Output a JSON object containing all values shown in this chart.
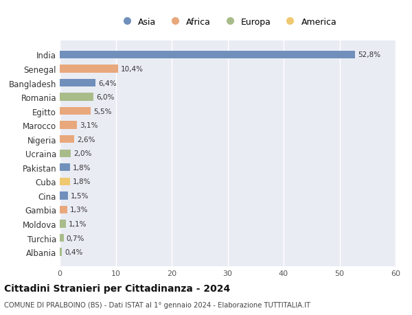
{
  "countries": [
    "India",
    "Senegal",
    "Bangladesh",
    "Romania",
    "Egitto",
    "Marocco",
    "Nigeria",
    "Ucraina",
    "Pakistan",
    "Cuba",
    "Cina",
    "Gambia",
    "Moldova",
    "Turchia",
    "Albania"
  ],
  "values": [
    52.8,
    10.4,
    6.4,
    6.0,
    5.5,
    3.1,
    2.6,
    2.0,
    1.8,
    1.8,
    1.5,
    1.3,
    1.1,
    0.7,
    0.4
  ],
  "labels": [
    "52,8%",
    "10,4%",
    "6,4%",
    "6,0%",
    "5,5%",
    "3,1%",
    "2,6%",
    "2,0%",
    "1,8%",
    "1,8%",
    "1,5%",
    "1,3%",
    "1,1%",
    "0,7%",
    "0,4%"
  ],
  "colors": [
    "#7090bb",
    "#e8a87c",
    "#7090bb",
    "#a8bc8a",
    "#e8a87c",
    "#e8a87c",
    "#e8a87c",
    "#a8bc8a",
    "#7090bb",
    "#f0c870",
    "#7090bb",
    "#e8a87c",
    "#a8bc8a",
    "#a8bc8a",
    "#a8bc8a"
  ],
  "legend_labels": [
    "Asia",
    "Africa",
    "Europa",
    "America"
  ],
  "legend_colors": [
    "#7090bb",
    "#e8a87c",
    "#a8bc8a",
    "#f0c870"
  ],
  "title": "Cittadini Stranieri per Cittadinanza - 2024",
  "subtitle": "COMUNE DI PRALBOINO (BS) - Dati ISTAT al 1° gennaio 2024 - Elaborazione TUTTITALIA.IT",
  "xlim": [
    0,
    60
  ],
  "xticks": [
    0,
    10,
    20,
    30,
    40,
    50,
    60
  ],
  "plot_bg_color": "#eaecf4",
  "fig_bg_color": "#ffffff",
  "grid_color": "#ffffff"
}
